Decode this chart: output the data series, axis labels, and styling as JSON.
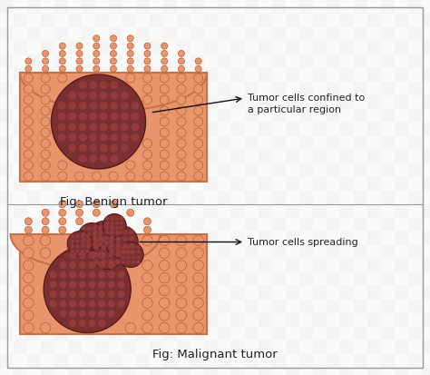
{
  "background_color": "#ffffff",
  "outer_border_color": "#999999",
  "tissue_color": "#E8956D",
  "tissue_border_color": "#C8704A",
  "cell_face_color": "#E8956D",
  "cell_edge_color": "#B86030",
  "tumor_color": "#7A3030",
  "tumor_cell_color": "#9B4040",
  "tumor_border_color": "#5A1818",
  "benign_label": "Fig: Benign tumor",
  "malignant_label": "Fig: Malignant tumor",
  "annotation1": "Tumor cells confined to\na particular region",
  "annotation2": "Tumor cells spreading",
  "text_color": "#222222",
  "arrow_color": "#111111",
  "font_size_label": 9.5,
  "font_size_annot": 8.0,
  "checkered_light": "#eeeeee",
  "checkered_dark": "#d8d8d8"
}
